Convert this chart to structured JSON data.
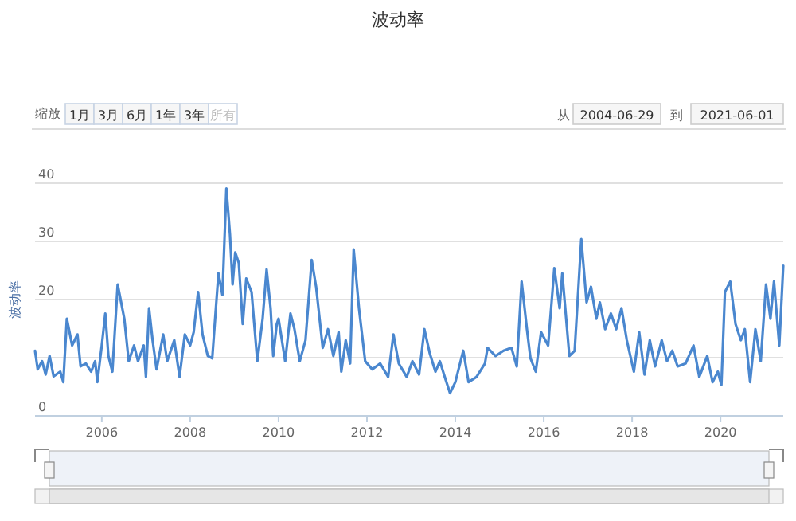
{
  "chart_data": {
    "type": "line",
    "title": "波动率",
    "ylabel": "波动率",
    "annotations": [
      "缩放",
      "1月",
      "3月",
      "6月",
      "1年",
      "3年",
      "所有",
      "从",
      "2004-06-29",
      "到",
      "2021-06-01"
    ],
    "xlim": [
      2004.49,
      2021.42
    ],
    "xticks": [
      2006,
      2008,
      2010,
      2012,
      2014,
      2016,
      2018,
      2020
    ],
    "ylim": [
      0,
      40
    ],
    "yticks": [
      0,
      {
        "value": 10,
        "label": null
      },
      20,
      30,
      40
    ],
    "grid": "y",
    "legend": false,
    "series": [
      {
        "color": "#4a87cf",
        "x": [
          2004.49,
          2004.55,
          2004.65,
          2004.73,
          2004.82,
          2004.91,
          2005.06,
          2005.13,
          2005.21,
          2005.33,
          2005.45,
          2005.52,
          2005.64,
          2005.76,
          2005.85,
          2005.9,
          2006.0,
          2006.08,
          2006.15,
          2006.24,
          2006.36,
          2006.51,
          2006.61,
          2006.73,
          2006.82,
          2006.95,
          2007.0,
          2007.07,
          2007.15,
          2007.24,
          2007.39,
          2007.48,
          2007.64,
          2007.76,
          2007.88,
          2008.0,
          2008.08,
          2008.18,
          2008.28,
          2008.4,
          2008.5,
          2008.64,
          2008.73,
          2008.82,
          2008.9,
          2008.96,
          2009.02,
          2009.1,
          2009.19,
          2009.27,
          2009.39,
          2009.52,
          2009.64,
          2009.73,
          2009.82,
          2009.88,
          2009.96,
          2010.0,
          2010.15,
          2010.27,
          2010.36,
          2010.48,
          2010.61,
          2010.75,
          2010.85,
          2011.0,
          2011.12,
          2011.24,
          2011.36,
          2011.42,
          2011.52,
          2011.62,
          2011.7,
          2011.82,
          2011.96,
          2012.12,
          2012.3,
          2012.48,
          2012.6,
          2012.72,
          2012.9,
          2013.03,
          2013.18,
          2013.3,
          2013.42,
          2013.55,
          2013.65,
          2013.76,
          2013.88,
          2014.0,
          2014.18,
          2014.3,
          2014.48,
          2014.67,
          2014.73,
          2014.91,
          2015.09,
          2015.27,
          2015.39,
          2015.5,
          2015.62,
          2015.7,
          2015.82,
          2015.94,
          2016.1,
          2016.24,
          2016.36,
          2016.42,
          2016.58,
          2016.7,
          2016.85,
          2016.97,
          2017.07,
          2017.19,
          2017.27,
          2017.39,
          2017.52,
          2017.64,
          2017.76,
          2017.88,
          2018.04,
          2018.16,
          2018.28,
          2018.4,
          2018.52,
          2018.67,
          2018.79,
          2018.91,
          2019.03,
          2019.21,
          2019.39,
          2019.52,
          2019.7,
          2019.82,
          2019.94,
          2020.02,
          2020.1,
          2020.22,
          2020.34,
          2020.46,
          2020.55,
          2020.67,
          2020.79,
          2020.91,
          2021.03,
          2021.13,
          2021.21,
          2021.33,
          2021.42
        ],
        "values": [
          11.2,
          8,
          9.4,
          7.1,
          10.3,
          6.8,
          7.6,
          5.8,
          16.7,
          12.1,
          14,
          8.5,
          9,
          7.6,
          9.4,
          5.8,
          12.1,
          17.6,
          10.3,
          7.6,
          22.6,
          16.7,
          9.4,
          12.1,
          9.4,
          12.1,
          6.7,
          18.5,
          13,
          8,
          14,
          9.4,
          13,
          6.7,
          14,
          12.1,
          14.4,
          21.3,
          14,
          10.3,
          9.9,
          24.5,
          20.8,
          39.1,
          31.3,
          22.6,
          28.1,
          26.3,
          15.8,
          23.6,
          21.3,
          9.4,
          16.7,
          25.2,
          18.5,
          10.3,
          15.8,
          16.7,
          9.4,
          17.6,
          14.9,
          9.4,
          13,
          26.8,
          22.2,
          11.7,
          14.9,
          10.3,
          14.4,
          7.6,
          13,
          9,
          28.6,
          18.5,
          9.4,
          8,
          9,
          6.7,
          14,
          9,
          6.7,
          9.4,
          7.1,
          14.9,
          10.8,
          7.6,
          9.4,
          6.7,
          3.9,
          5.8,
          11.2,
          5.8,
          6.7,
          9,
          11.7,
          10.3,
          11.2,
          11.7,
          8.5,
          23.1,
          14.9,
          9.9,
          7.6,
          14.4,
          12.1,
          25.4,
          18.5,
          24.5,
          10.3,
          11.2,
          30.4,
          19.5,
          22.2,
          16.7,
          19.5,
          14.9,
          17.6,
          14.9,
          18.5,
          13,
          7.6,
          14.4,
          7.1,
          13,
          8.5,
          13,
          9.4,
          11.2,
          8.5,
          9,
          12.1,
          6.7,
          10.3,
          5.8,
          7.6,
          5.3,
          21.3,
          23.1,
          15.8,
          13,
          14.9,
          5.8,
          14.9,
          9.4,
          22.6,
          16.7,
          23.1,
          12.1,
          25.8
        ]
      }
    ]
  }
}
